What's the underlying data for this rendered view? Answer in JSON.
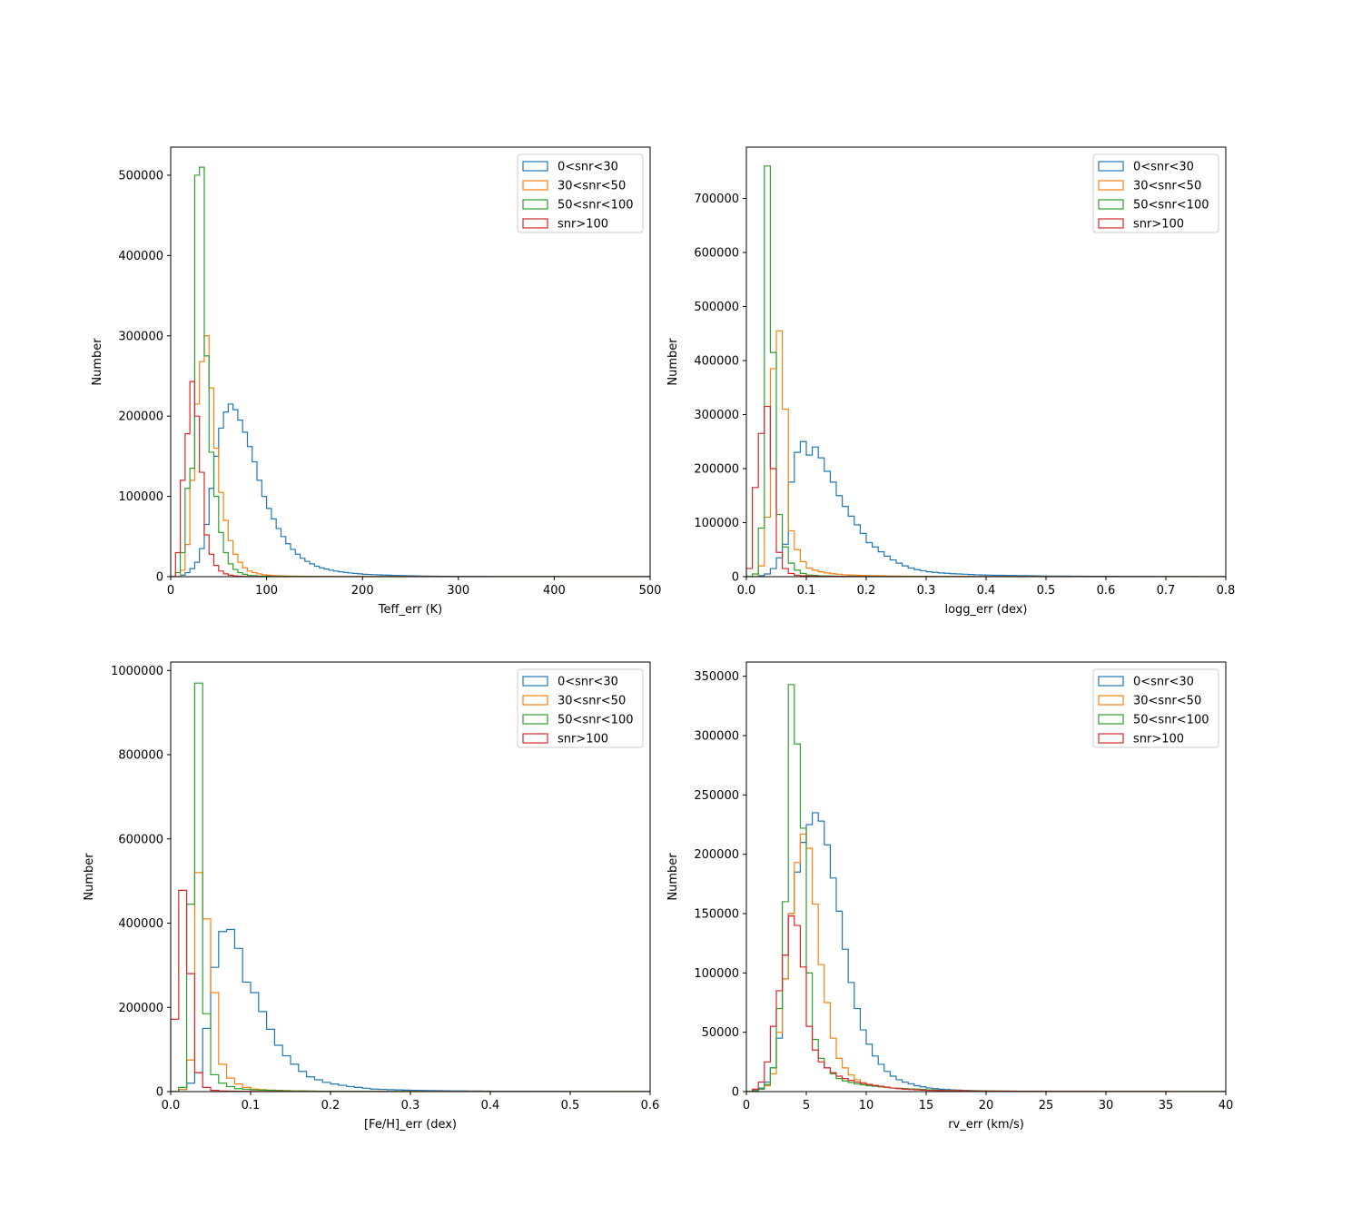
{
  "legend_labels": [
    "0<snr<30",
    "30<snr<50",
    "50<snr<100",
    "snr>100"
  ],
  "series_colors": [
    "#1f77b4",
    "#ff7f0e",
    "#2ca02c",
    "#d62728"
  ],
  "chart_data": [
    {
      "type": "histogram",
      "xlabel": "Teff_err (K)",
      "ylabel": "Number",
      "xlim": [
        0,
        500
      ],
      "ylim": [
        0,
        535000
      ],
      "xticks": [
        0,
        100,
        200,
        300,
        400,
        500
      ],
      "yticks": [
        0,
        100000,
        200000,
        300000,
        400000,
        500000
      ],
      "legend_position": "upper right",
      "bin_width": 5,
      "series": [
        {
          "name": "0<snr<30",
          "color": "#1f77b4",
          "x": [
            0,
            5,
            10,
            15,
            20,
            25,
            30,
            35,
            40,
            45,
            50,
            55,
            60,
            65,
            70,
            75,
            80,
            85,
            90,
            95,
            100,
            105,
            110,
            115,
            120,
            125,
            130,
            135,
            140,
            145,
            150,
            155,
            160,
            165,
            170,
            175,
            180,
            185,
            190,
            195,
            200,
            210,
            220,
            230,
            240,
            250,
            260,
            270,
            280,
            290,
            300,
            350,
            400,
            450,
            495
          ],
          "values": [
            0,
            0,
            2000,
            5000,
            10000,
            18000,
            35000,
            65000,
            110000,
            150000,
            185000,
            205000,
            215000,
            208000,
            195000,
            180000,
            162000,
            143000,
            120000,
            100000,
            85000,
            72000,
            60000,
            50000,
            41000,
            34000,
            28000,
            23000,
            19000,
            16000,
            13000,
            11000,
            9500,
            8000,
            7000,
            6000,
            5200,
            4600,
            4000,
            3500,
            3000,
            2500,
            2000,
            1600,
            1300,
            1000,
            800,
            600,
            500,
            400,
            300,
            200,
            100,
            50,
            0
          ]
        },
        {
          "name": "30<snr<50",
          "color": "#ff7f0e",
          "x": [
            0,
            5,
            10,
            15,
            20,
            25,
            30,
            35,
            40,
            45,
            50,
            55,
            60,
            65,
            70,
            75,
            80,
            85,
            90,
            95,
            100,
            110,
            120,
            130,
            140,
            150,
            200,
            300,
            400,
            495
          ],
          "values": [
            0,
            0,
            8000,
            40000,
            120000,
            215000,
            268000,
            300000,
            235000,
            160000,
            105000,
            70000,
            45000,
            28000,
            18000,
            11000,
            7000,
            5000,
            3500,
            2500,
            1800,
            1200,
            800,
            600,
            400,
            300,
            150,
            50,
            20,
            0
          ]
        },
        {
          "name": "50<snr<100",
          "color": "#2ca02c",
          "x": [
            0,
            5,
            10,
            15,
            20,
            25,
            30,
            35,
            40,
            45,
            50,
            55,
            60,
            65,
            70,
            75,
            80,
            90,
            100,
            150,
            200,
            300,
            400,
            495
          ],
          "values": [
            0,
            5000,
            30000,
            110000,
            135000,
            500000,
            510000,
            275000,
            155000,
            100000,
            55000,
            30000,
            16000,
            9000,
            5000,
            3000,
            1500,
            800,
            400,
            100,
            50,
            20,
            10,
            0
          ]
        },
        {
          "name": "snr>100",
          "color": "#d62728",
          "x": [
            0,
            5,
            10,
            15,
            20,
            25,
            30,
            35,
            40,
            45,
            50,
            55,
            60,
            65,
            70,
            80,
            100,
            200,
            300,
            495
          ],
          "values": [
            0,
            30000,
            120000,
            178000,
            243000,
            200000,
            130000,
            52000,
            28000,
            14000,
            7000,
            3500,
            1800,
            900,
            400,
            150,
            50,
            10,
            0,
            0
          ]
        }
      ]
    },
    {
      "type": "histogram",
      "xlabel": "logg_err (dex)",
      "ylabel": "Number",
      "xlim": [
        0,
        0.8
      ],
      "ylim": [
        0,
        795000
      ],
      "xticks": [
        0.0,
        0.1,
        0.2,
        0.3,
        0.4,
        0.5,
        0.6,
        0.7,
        0.8
      ],
      "yticks": [
        0,
        100000,
        200000,
        300000,
        400000,
        500000,
        600000,
        700000
      ],
      "legend_position": "upper right",
      "bin_width": 0.01,
      "series": [
        {
          "name": "0<snr<30",
          "color": "#1f77b4",
          "x": [
            0.0,
            0.01,
            0.02,
            0.03,
            0.04,
            0.05,
            0.06,
            0.07,
            0.08,
            0.09,
            0.1,
            0.11,
            0.12,
            0.13,
            0.14,
            0.15,
            0.16,
            0.17,
            0.18,
            0.19,
            0.2,
            0.21,
            0.22,
            0.23,
            0.24,
            0.25,
            0.26,
            0.27,
            0.28,
            0.29,
            0.3,
            0.32,
            0.34,
            0.36,
            0.38,
            0.4,
            0.45,
            0.5,
            0.6,
            0.7,
            0.79
          ],
          "values": [
            0,
            0,
            2000,
            5000,
            15000,
            35000,
            60000,
            175000,
            230000,
            250000,
            225000,
            240000,
            220000,
            195000,
            175000,
            150000,
            130000,
            112000,
            96000,
            80000,
            63000,
            55000,
            46000,
            38000,
            31000,
            25000,
            20000,
            16000,
            13000,
            11000,
            9000,
            7000,
            5500,
            4500,
            3500,
            2800,
            2000,
            1200,
            600,
            300,
            0
          ]
        },
        {
          "name": "30<snr<50",
          "color": "#ff7f0e",
          "x": [
            0.0,
            0.01,
            0.02,
            0.03,
            0.04,
            0.05,
            0.06,
            0.07,
            0.08,
            0.09,
            0.1,
            0.11,
            0.12,
            0.13,
            0.14,
            0.15,
            0.16,
            0.18,
            0.2,
            0.25,
            0.3,
            0.4,
            0.5,
            0.6,
            0.79
          ],
          "values": [
            0,
            0,
            20000,
            110000,
            385000,
            455000,
            310000,
            85000,
            50000,
            28000,
            16000,
            12000,
            9000,
            7000,
            5500,
            4500,
            3500,
            2500,
            1800,
            1000,
            600,
            300,
            150,
            60,
            0
          ]
        },
        {
          "name": "50<snr<100",
          "color": "#2ca02c",
          "x": [
            0.0,
            0.01,
            0.02,
            0.03,
            0.04,
            0.05,
            0.06,
            0.07,
            0.08,
            0.09,
            0.1,
            0.12,
            0.15,
            0.2,
            0.3,
            0.5,
            0.7,
            0.79
          ],
          "values": [
            0,
            5000,
            90000,
            760000,
            415000,
            115000,
            55000,
            25000,
            12000,
            6000,
            3000,
            1500,
            800,
            400,
            150,
            50,
            20,
            0
          ]
        },
        {
          "name": "snr>100",
          "color": "#d62728",
          "x": [
            0.0,
            0.01,
            0.02,
            0.03,
            0.04,
            0.05,
            0.06,
            0.07,
            0.08,
            0.1,
            0.15,
            0.2,
            0.3,
            0.5,
            0.79
          ],
          "values": [
            15000,
            165000,
            265000,
            315000,
            200000,
            45000,
            15000,
            6000,
            2500,
            1000,
            400,
            150,
            50,
            10,
            0
          ]
        }
      ]
    },
    {
      "type": "histogram",
      "xlabel": "[Fe/H]_err (dex)",
      "ylabel": "Number",
      "xlim": [
        0,
        0.6
      ],
      "ylim": [
        0,
        1020000
      ],
      "xticks": [
        0.0,
        0.1,
        0.2,
        0.3,
        0.4,
        0.5,
        0.6
      ],
      "yticks": [
        0,
        200000,
        400000,
        600000,
        800000,
        1000000
      ],
      "legend_position": "upper right",
      "bin_width": 0.01,
      "series": [
        {
          "name": "0<snr<30",
          "color": "#1f77b4",
          "x": [
            0.0,
            0.01,
            0.02,
            0.03,
            0.04,
            0.05,
            0.06,
            0.07,
            0.08,
            0.09,
            0.1,
            0.11,
            0.12,
            0.13,
            0.14,
            0.15,
            0.16,
            0.17,
            0.18,
            0.19,
            0.2,
            0.21,
            0.22,
            0.23,
            0.24,
            0.25,
            0.27,
            0.3,
            0.35,
            0.4,
            0.5,
            0.59
          ],
          "values": [
            0,
            5000,
            20000,
            45000,
            150000,
            295000,
            380000,
            385000,
            340000,
            260000,
            235000,
            190000,
            148000,
            110000,
            85000,
            65000,
            48000,
            35000,
            28000,
            22000,
            18000,
            15000,
            12000,
            10000,
            8000,
            6000,
            4500,
            3000,
            1800,
            1000,
            400,
            0
          ]
        },
        {
          "name": "30<snr<50",
          "color": "#ff7f0e",
          "x": [
            0.0,
            0.01,
            0.02,
            0.03,
            0.04,
            0.05,
            0.06,
            0.07,
            0.08,
            0.09,
            0.1,
            0.12,
            0.15,
            0.2,
            0.3,
            0.5,
            0.59
          ],
          "values": [
            0,
            5000,
            75000,
            520000,
            410000,
            235000,
            65000,
            32000,
            18000,
            10000,
            6000,
            3500,
            1800,
            800,
            300,
            60,
            0
          ]
        },
        {
          "name": "50<snr<100",
          "color": "#2ca02c",
          "x": [
            0.0,
            0.01,
            0.02,
            0.03,
            0.04,
            0.05,
            0.06,
            0.07,
            0.08,
            0.1,
            0.15,
            0.2,
            0.3,
            0.5,
            0.59
          ],
          "values": [
            0,
            10000,
            445000,
            970000,
            185000,
            40000,
            20000,
            12000,
            7000,
            4000,
            1500,
            600,
            200,
            50,
            0
          ]
        },
        {
          "name": "snr>100",
          "color": "#d62728",
          "x": [
            0.0,
            0.01,
            0.02,
            0.03,
            0.04,
            0.05,
            0.06,
            0.08,
            0.1,
            0.15,
            0.2,
            0.3,
            0.59
          ],
          "values": [
            172000,
            478000,
            280000,
            45000,
            10000,
            3000,
            1500,
            800,
            400,
            150,
            50,
            10,
            0
          ]
        }
      ]
    },
    {
      "type": "histogram",
      "xlabel": "rv_err (km/s)",
      "ylabel": "Number",
      "xlim": [
        0,
        40
      ],
      "ylim": [
        0,
        362000
      ],
      "xticks": [
        0,
        5,
        10,
        15,
        20,
        25,
        30,
        35,
        40
      ],
      "yticks": [
        0,
        50000,
        100000,
        150000,
        200000,
        250000,
        300000,
        350000
      ],
      "legend_position": "upper right",
      "bin_width": 0.5,
      "series": [
        {
          "name": "0<snr<30",
          "color": "#1f77b4",
          "x": [
            0.0,
            0.5,
            1.0,
            1.5,
            2.0,
            2.5,
            3.0,
            3.5,
            4.0,
            4.5,
            5.0,
            5.5,
            6.0,
            6.5,
            7.0,
            7.5,
            8.0,
            8.5,
            9.0,
            9.5,
            10.0,
            10.5,
            11.0,
            11.5,
            12.0,
            12.5,
            13.0,
            13.5,
            14.0,
            14.5,
            15.0,
            16.0,
            17.0,
            18.0,
            20.0,
            22.0,
            25.0,
            30.0,
            35.0,
            39.5
          ],
          "values": [
            0,
            1000,
            3000,
            8000,
            20000,
            45000,
            95000,
            150000,
            185000,
            210000,
            225000,
            235000,
            228000,
            208000,
            180000,
            152000,
            120000,
            92000,
            70000,
            52000,
            40000,
            30000,
            23000,
            17000,
            13000,
            10000,
            8000,
            6500,
            5000,
            4000,
            3000,
            2000,
            1500,
            1000,
            600,
            300,
            150,
            50,
            20,
            0
          ]
        },
        {
          "name": "30<snr<50",
          "color": "#ff7f0e",
          "x": [
            0.0,
            0.5,
            1.0,
            1.5,
            2.0,
            2.5,
            3.0,
            3.5,
            4.0,
            4.5,
            5.0,
            5.5,
            6.0,
            6.5,
            7.0,
            7.5,
            8.0,
            8.5,
            9.0,
            9.5,
            10.0,
            11.0,
            12.0,
            14.0,
            16.0,
            20.0,
            25.0,
            30.0,
            39.5
          ],
          "values": [
            0,
            500,
            2000,
            5000,
            15000,
            50000,
            95000,
            150000,
            193000,
            217000,
            205000,
            158000,
            107000,
            75000,
            45000,
            28000,
            20000,
            14000,
            10000,
            7500,
            5500,
            4000,
            3000,
            2000,
            1000,
            500,
            200,
            50,
            0
          ]
        },
        {
          "name": "50<snr<100",
          "color": "#2ca02c",
          "x": [
            0.0,
            0.5,
            1.0,
            1.5,
            2.0,
            2.5,
            3.0,
            3.5,
            4.0,
            4.5,
            5.0,
            5.5,
            6.0,
            6.5,
            7.0,
            7.5,
            8.0,
            9.0,
            10.0,
            11.0,
            12.0,
            14.0,
            16.0,
            20.0,
            25.0,
            39.5
          ],
          "values": [
            0,
            500,
            2000,
            6000,
            20000,
            70000,
            160000,
            343000,
            293000,
            222000,
            100000,
            44000,
            28000,
            20000,
            15000,
            11000,
            9000,
            6500,
            5000,
            4000,
            3000,
            2000,
            1000,
            500,
            200,
            0
          ]
        },
        {
          "name": "snr>100",
          "color": "#d62728",
          "x": [
            0.0,
            0.5,
            1.0,
            1.5,
            2.0,
            2.5,
            3.0,
            3.5,
            4.0,
            4.5,
            5.0,
            5.5,
            6.0,
            6.5,
            7.0,
            7.5,
            8.0,
            9.0,
            10.0,
            11.0,
            12.0,
            13.0,
            15.0,
            20.0,
            39.5
          ],
          "values": [
            0,
            2000,
            8000,
            25000,
            55000,
            85000,
            115000,
            148000,
            140000,
            105000,
            55000,
            35000,
            25000,
            20000,
            16000,
            13000,
            11000,
            8000,
            6000,
            4500,
            3000,
            2000,
            1000,
            300,
            0
          ]
        }
      ]
    }
  ]
}
